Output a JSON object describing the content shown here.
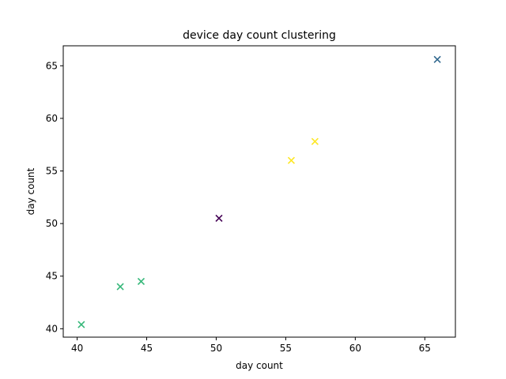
{
  "chart_data": {
    "type": "scatter",
    "title": "device day count clustering",
    "xlabel": "day count",
    "ylabel": "day count",
    "xlim": [
      39,
      67.2
    ],
    "ylim": [
      39.2,
      66.9
    ],
    "xticks": [
      40,
      45,
      50,
      55,
      60,
      65
    ],
    "yticks": [
      40,
      45,
      50,
      55,
      60,
      65
    ],
    "marker": "x",
    "grid": false,
    "points": [
      {
        "x": 40.3,
        "y": 40.4,
        "color": "#35b779"
      },
      {
        "x": 43.1,
        "y": 44.0,
        "color": "#35b779"
      },
      {
        "x": 44.6,
        "y": 44.5,
        "color": "#35b779"
      },
      {
        "x": 50.2,
        "y": 50.5,
        "color": "#440154"
      },
      {
        "x": 55.4,
        "y": 56.0,
        "color": "#fde725"
      },
      {
        "x": 57.1,
        "y": 57.8,
        "color": "#fde725"
      },
      {
        "x": 65.9,
        "y": 65.6,
        "color": "#31688e"
      }
    ]
  }
}
